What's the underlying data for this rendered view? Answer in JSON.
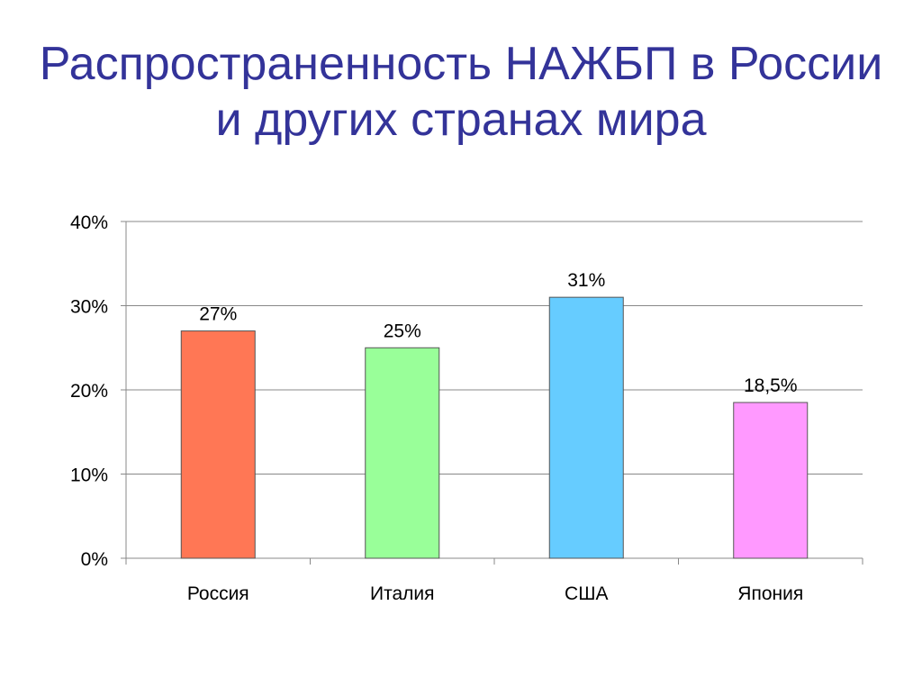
{
  "slide": {
    "title": "Распространенность НАЖБП в России и других странах мира"
  },
  "chart_data": {
    "type": "bar",
    "categories": [
      "Россия",
      "Италия",
      "США",
      "Япония"
    ],
    "values": [
      27,
      25,
      31,
      18.5
    ],
    "data_labels": [
      "27%",
      "25%",
      "31%",
      "18,5%"
    ],
    "colors": [
      "#FF7755",
      "#99FF99",
      "#66CCFF",
      "#FF99FF"
    ],
    "y_ticks": [
      "0%",
      "10%",
      "20%",
      "30%",
      "40%"
    ],
    "y_tick_values": [
      0,
      10,
      20,
      30,
      40
    ],
    "ylim": [
      0,
      40
    ],
    "grid": true,
    "legend": "none",
    "title": "Распространенность НАЖБП в России и других странах мира",
    "xlabel": "",
    "ylabel": ""
  }
}
